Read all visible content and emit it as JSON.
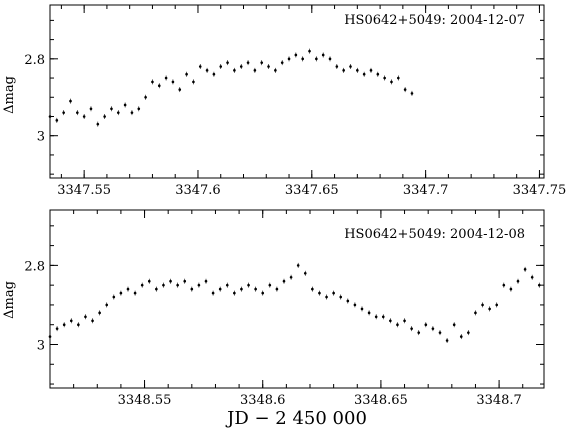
{
  "figure": {
    "xlabel": "JD − 2 450 000"
  },
  "chart_data": [
    {
      "type": "scatter",
      "title": "HS0642+5049: 2004-12-07",
      "xlabel": "",
      "ylabel": "Δmag",
      "xlim": [
        3347.535,
        3347.752
      ],
      "ylim": [
        3.11,
        2.66
      ],
      "y_inverted": true,
      "xticks": [
        3347.55,
        3347.6,
        3347.65,
        3347.7,
        3347.75
      ],
      "xtick_labels": [
        "3347.55",
        "3347.6",
        "3347.65",
        "3347.7",
        "3347.75"
      ],
      "yticks": [
        2.8,
        3.0
      ],
      "ytick_labels": [
        "2.8",
        "3"
      ],
      "series": [
        {
          "marker": "dot",
          "x": [
            3347.535,
            3347.538,
            3347.541,
            3347.544,
            3347.547,
            3347.55,
            3347.553,
            3347.556,
            3347.559,
            3347.562,
            3347.565,
            3347.568,
            3347.571,
            3347.574,
            3347.577,
            3347.58,
            3347.583,
            3347.586,
            3347.589,
            3347.592,
            3347.595,
            3347.598,
            3347.601,
            3347.604,
            3347.607,
            3347.61,
            3347.613,
            3347.616,
            3347.619,
            3347.622,
            3347.625,
            3347.628,
            3347.631,
            3347.634,
            3347.637,
            3347.64,
            3347.643,
            3347.646,
            3347.649,
            3347.652,
            3347.655,
            3347.658,
            3347.661,
            3347.664,
            3347.667,
            3347.67,
            3347.673,
            3347.676,
            3347.679,
            3347.682,
            3347.685,
            3347.688,
            3347.691,
            3347.694
          ],
          "y": [
            2.95,
            2.96,
            2.94,
            2.91,
            2.94,
            2.95,
            2.93,
            2.97,
            2.95,
            2.93,
            2.94,
            2.92,
            2.94,
            2.93,
            2.9,
            2.86,
            2.87,
            2.85,
            2.86,
            2.88,
            2.84,
            2.86,
            2.82,
            2.83,
            2.84,
            2.82,
            2.81,
            2.83,
            2.82,
            2.81,
            2.83,
            2.81,
            2.82,
            2.83,
            2.81,
            2.8,
            2.79,
            2.8,
            2.78,
            2.8,
            2.79,
            2.8,
            2.82,
            2.83,
            2.82,
            2.83,
            2.84,
            2.83,
            2.84,
            2.85,
            2.86,
            2.85,
            2.88,
            2.89
          ]
        }
      ]
    },
    {
      "type": "scatter",
      "title": "HS0642+5049: 2004-12-08",
      "xlabel": "JD − 2 450 000",
      "ylabel": "Δmag",
      "xlim": [
        3348.51,
        3348.719
      ],
      "ylim": [
        3.11,
        2.66
      ],
      "y_inverted": true,
      "xticks": [
        3348.55,
        3348.6,
        3348.65,
        3348.7
      ],
      "xtick_labels": [
        "3348.55",
        "3348.6",
        "3348.65",
        "3348.7"
      ],
      "yticks": [
        2.8,
        3.0
      ],
      "ytick_labels": [
        "2.8",
        "3"
      ],
      "series": [
        {
          "marker": "dot",
          "x": [
            3348.51,
            3348.513,
            3348.516,
            3348.519,
            3348.522,
            3348.525,
            3348.528,
            3348.531,
            3348.534,
            3348.537,
            3348.54,
            3348.543,
            3348.546,
            3348.549,
            3348.552,
            3348.555,
            3348.558,
            3348.561,
            3348.564,
            3348.567,
            3348.57,
            3348.573,
            3348.576,
            3348.579,
            3348.582,
            3348.585,
            3348.588,
            3348.591,
            3348.594,
            3348.597,
            3348.6,
            3348.603,
            3348.606,
            3348.609,
            3348.612,
            3348.615,
            3348.618,
            3348.621,
            3348.624,
            3348.627,
            3348.63,
            3348.633,
            3348.636,
            3348.639,
            3348.642,
            3348.645,
            3348.648,
            3348.651,
            3348.654,
            3348.657,
            3348.66,
            3348.663,
            3348.666,
            3348.669,
            3348.672,
            3348.675,
            3348.678,
            3348.681,
            3348.684,
            3348.687,
            3348.69,
            3348.693,
            3348.696,
            3348.699,
            3348.702,
            3348.705,
            3348.708,
            3348.711,
            3348.714,
            3348.717
          ],
          "y": [
            2.98,
            2.96,
            2.95,
            2.94,
            2.95,
            2.93,
            2.94,
            2.92,
            2.9,
            2.88,
            2.87,
            2.86,
            2.87,
            2.85,
            2.84,
            2.86,
            2.85,
            2.84,
            2.85,
            2.84,
            2.86,
            2.85,
            2.84,
            2.87,
            2.86,
            2.85,
            2.87,
            2.86,
            2.85,
            2.86,
            2.87,
            2.85,
            2.86,
            2.84,
            2.83,
            2.8,
            2.82,
            2.86,
            2.87,
            2.88,
            2.87,
            2.88,
            2.89,
            2.9,
            2.91,
            2.92,
            2.93,
            2.93,
            2.94,
            2.95,
            2.94,
            2.96,
            2.97,
            2.95,
            2.96,
            2.97,
            2.99,
            2.95,
            2.98,
            2.97,
            2.92,
            2.9,
            2.91,
            2.9,
            2.85,
            2.86,
            2.84,
            2.81,
            2.83,
            2.85
          ]
        }
      ]
    }
  ]
}
